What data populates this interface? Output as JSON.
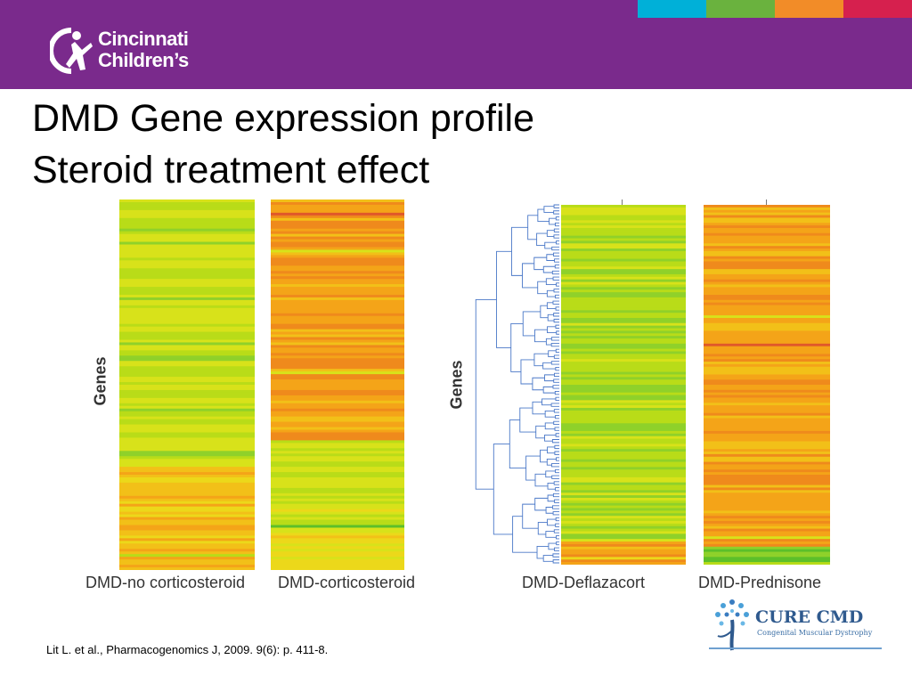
{
  "header": {
    "logo_line1": "Cincinnati",
    "logo_line2": "Children’s",
    "logo_icon": "running-child-icon",
    "background": "#7a2a8c",
    "stripes": [
      "#00b0d8",
      "#6ab23e",
      "#f28c28",
      "#d6204e"
    ]
  },
  "title": {
    "line1": "DMD Gene expression profile",
    "line2": "Steroid treatment effect"
  },
  "left_panel": {
    "ylabel": "Genes",
    "heatmaps": [
      {
        "label": "DMD-no corticosteroid"
      },
      {
        "label": "DMD-corticosteroid"
      }
    ]
  },
  "right_panel": {
    "ylabel": "Genes",
    "heatmaps": [
      {
        "label": "DMD-Deflazacort"
      },
      {
        "label": "DMD-Prednisone"
      }
    ]
  },
  "citation": "Lit L. et al., Pharmacogenomics J, 2009. 9(6): p. 411-8.",
  "cure_logo": {
    "name": "CURE CMD",
    "subtitle": "Congenital Muscular Dystrophy",
    "icon": "tree-icon"
  }
}
